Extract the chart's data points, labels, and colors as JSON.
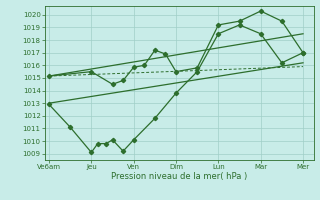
{
  "bg_color": "#c8ece8",
  "grid_color": "#a0cfc8",
  "line_color": "#2d6e2d",
  "figsize": [
    3.2,
    2.0
  ],
  "dpi": 100,
  "ylim": [
    1008.5,
    1020.7
  ],
  "xlim": [
    -0.2,
    12.5
  ],
  "ylabel_ticks": [
    1009,
    1010,
    1011,
    1012,
    1013,
    1014,
    1015,
    1016,
    1017,
    1018,
    1019,
    1020
  ],
  "xtick_labels": [
    "Ve6am",
    "Jeu",
    "Ven",
    "Dim",
    "Lun",
    "Mar",
    "Mer"
  ],
  "xtick_positions": [
    0,
    2,
    4,
    6,
    8,
    10,
    12
  ],
  "xlabel": "Pression niveau de la mer( hPa )",
  "upper_trend_line": {
    "x": [
      0,
      12
    ],
    "y": [
      1015.15,
      1018.5
    ]
  },
  "lower_trend_line": {
    "x": [
      0,
      12
    ],
    "y": [
      1013.0,
      1016.2
    ]
  },
  "flat_line": {
    "x": [
      0,
      12
    ],
    "y": [
      1015.15,
      1015.9
    ]
  },
  "zigzag_upper": {
    "x": [
      0,
      2,
      3,
      3.5,
      4,
      4.5,
      5,
      5.5,
      6,
      7,
      8,
      9,
      10,
      11,
      12
    ],
    "y": [
      1015.15,
      1015.5,
      1014.5,
      1014.8,
      1015.85,
      1016.0,
      1017.2,
      1016.9,
      1015.5,
      1015.8,
      1019.2,
      1019.5,
      1020.3,
      1019.5,
      1017.0
    ]
  },
  "zigzag_lower": {
    "x": [
      0,
      1,
      2,
      2.3,
      2.7,
      3,
      3.5,
      4,
      5,
      6,
      7,
      8,
      9,
      10,
      11,
      12
    ],
    "y": [
      1012.9,
      1011.1,
      1009.1,
      1009.8,
      1009.8,
      1010.1,
      1009.2,
      1010.1,
      1011.8,
      1013.8,
      1015.5,
      1018.5,
      1019.2,
      1018.5,
      1016.2,
      1017.0
    ]
  }
}
